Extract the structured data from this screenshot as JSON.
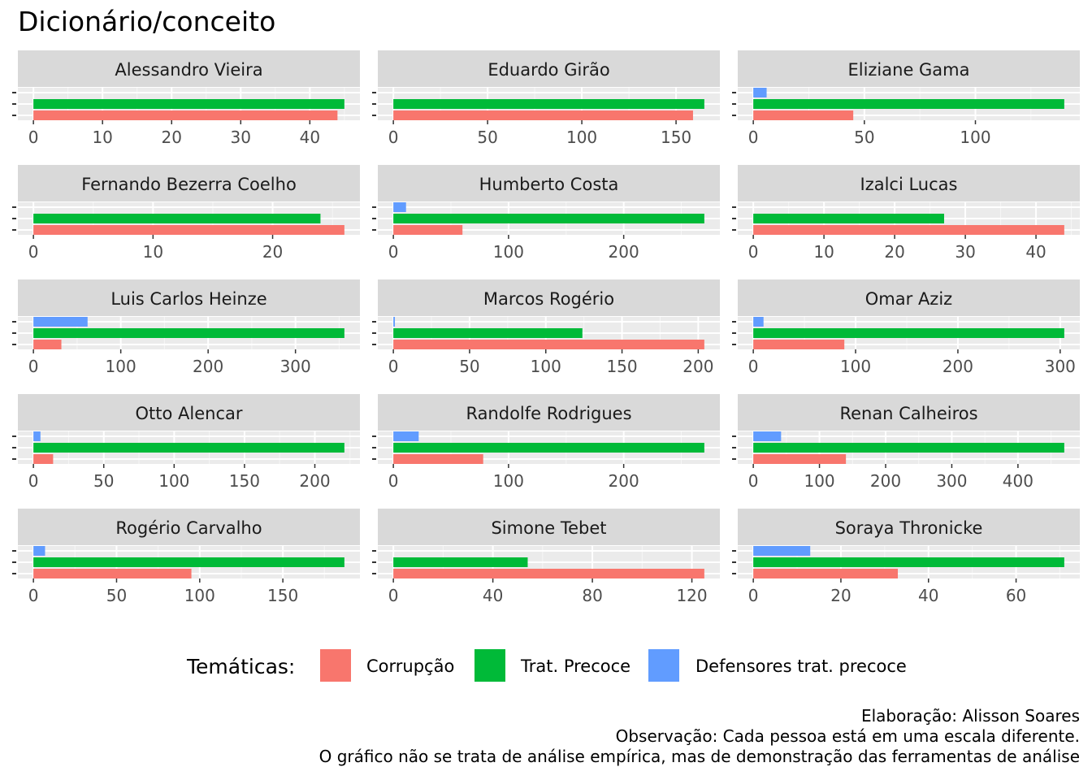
{
  "chart_data": {
    "type": "bar",
    "orientation": "horizontal",
    "facet_layout": "3 columns x 5 rows, free x scales",
    "title": "Dicionário/conceito",
    "legend": {
      "title": "Temáticas:",
      "placement": "bottom",
      "entries": [
        {
          "label": "Corrupção",
          "color": "#F8766D"
        },
        {
          "label": "Trat. Precoce",
          "color": "#00BA38"
        },
        {
          "label": "Defensores trat. precoce",
          "color": "#619CFF"
        }
      ]
    },
    "caption": [
      "Elaboração: Alisson Soares",
      "Observação: Cada pessoa está em uma escala diferente.",
      "O gráfico não se trata de análise empírica, mas de demonstração das ferramentas de análise"
    ],
    "series_order": [
      "Corrupção",
      "Trat. Precoce",
      "Defensores trat. precoce"
    ],
    "panels": [
      {
        "name": "Alessandro Vieira",
        "values": [
          44,
          45,
          0
        ],
        "xlim": [
          -2.25,
          47.25
        ],
        "ticks": [
          0,
          10,
          20,
          30,
          40
        ]
      },
      {
        "name": "Eduardo Girão",
        "values": [
          159,
          165,
          0
        ],
        "xlim": [
          -8.25,
          173.25
        ],
        "ticks": [
          0,
          50,
          100,
          150
        ]
      },
      {
        "name": "Eliziane Gama",
        "values": [
          45,
          140,
          6
        ],
        "xlim": [
          -7,
          147
        ],
        "ticks": [
          0,
          50,
          100
        ]
      },
      {
        "name": "Fernando Bezerra Coelho",
        "values": [
          26,
          24,
          0
        ],
        "xlim": [
          -1.3,
          27.3
        ],
        "ticks": [
          0,
          10,
          20
        ]
      },
      {
        "name": "Humberto Costa",
        "values": [
          60,
          270,
          11
        ],
        "xlim": [
          -13.5,
          283.5
        ],
        "ticks": [
          0,
          100,
          200
        ]
      },
      {
        "name": "Izalci Lucas",
        "values": [
          44,
          27,
          0
        ],
        "xlim": [
          -2.2,
          46.2
        ],
        "ticks": [
          0,
          10,
          20,
          30,
          40
        ]
      },
      {
        "name": "Luis Carlos Heinze",
        "values": [
          32,
          356,
          62
        ],
        "xlim": [
          -17.8,
          373.8
        ],
        "ticks": [
          0,
          100,
          200,
          300
        ]
      },
      {
        "name": "Marcos Rogério",
        "values": [
          204,
          124,
          1
        ],
        "xlim": [
          -10.2,
          214.2
        ],
        "ticks": [
          0,
          50,
          100,
          150,
          200
        ]
      },
      {
        "name": "Omar Aziz",
        "values": [
          89,
          304,
          10
        ],
        "xlim": [
          -15.2,
          319.2
        ],
        "ticks": [
          0,
          100,
          200,
          300
        ]
      },
      {
        "name": "Otto Alencar",
        "values": [
          14,
          221,
          5
        ],
        "xlim": [
          -11.05,
          232.05
        ],
        "ticks": [
          0,
          50,
          100,
          150,
          200
        ]
      },
      {
        "name": "Randolfe Rodrigues",
        "values": [
          78,
          270,
          22
        ],
        "xlim": [
          -13.5,
          283.5
        ],
        "ticks": [
          0,
          100,
          200
        ]
      },
      {
        "name": "Renan Calheiros",
        "values": [
          140,
          470,
          42
        ],
        "xlim": [
          -23.5,
          493.5
        ],
        "ticks": [
          0,
          100,
          200,
          300,
          400
        ]
      },
      {
        "name": "Rogério Carvalho",
        "values": [
          95,
          187,
          7
        ],
        "xlim": [
          -9.35,
          196.35
        ],
        "ticks": [
          0,
          50,
          100,
          150
        ]
      },
      {
        "name": "Simone Tebet",
        "values": [
          125,
          54,
          0
        ],
        "xlim": [
          -6.25,
          131.25
        ],
        "ticks": [
          0,
          40,
          80,
          120
        ]
      },
      {
        "name": "Soraya Thronicke",
        "values": [
          33,
          71,
          13
        ],
        "xlim": [
          -3.55,
          74.55
        ],
        "ticks": [
          0,
          20,
          40,
          60
        ]
      }
    ]
  }
}
